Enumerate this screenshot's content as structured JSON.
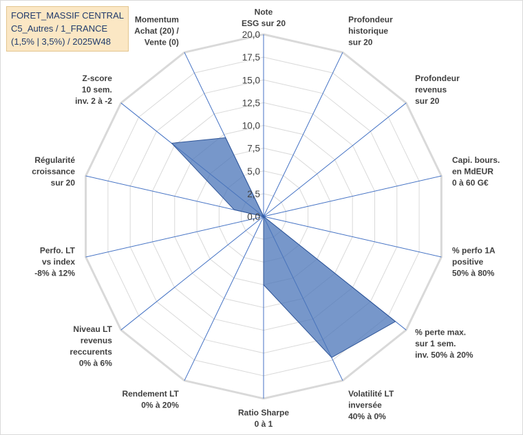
{
  "title_lines": [
    "FORET_MASSIF CENTRAL",
    "C5_Autres / 1_FRANCE",
    "(1,5% | 3,5%) / 2025W48"
  ],
  "colors": {
    "grid": "#d9d9d9",
    "spoke": "#4472c4",
    "fill": "#4a74b8",
    "fill_opacity": 0.75,
    "stroke": "#2f5597",
    "title_bg": "#fbe7c4"
  },
  "chart_data": {
    "type": "radar",
    "title": "",
    "rmin": 0,
    "rmax": 20,
    "tick_step": 2.5,
    "tick_labels": [
      "0,0",
      "2,5",
      "5,0",
      "7,5",
      "10,0",
      "12,5",
      "15,0",
      "17,5",
      "20,0"
    ],
    "grid": true,
    "axes": [
      {
        "label": [
          "Note",
          "ESG sur 20"
        ],
        "value": 0
      },
      {
        "label": [
          "Profondeur",
          "historique",
          "sur 20"
        ],
        "value": 0
      },
      {
        "label": [
          "Profondeur",
          "revenus",
          "sur 20"
        ],
        "value": 0
      },
      {
        "label": [
          "Capi. bours.",
          "en MdEUR",
          "0 à 60 G€"
        ],
        "value": 0
      },
      {
        "label": [
          "% perfo 1A",
          "positive",
          "50% à 80%"
        ],
        "value": 0
      },
      {
        "label": [
          "% perte max.",
          "sur 1 sem.",
          "inv. 50% à 20%"
        ],
        "value": 18.5
      },
      {
        "label": [
          "Volatilité LT",
          "inversée",
          "40% à 0%"
        ],
        "value": 17.2
      },
      {
        "label": [
          "Ratio Sharpe",
          "0 à 1"
        ],
        "value": 7.5
      },
      {
        "label": [
          "Rendement LT",
          "0% à 20%"
        ],
        "value": 0
      },
      {
        "label": [
          "Niveau LT",
          "revenus",
          "reccurents",
          "0% à 6%"
        ],
        "value": 0
      },
      {
        "label": [
          "Perfo. LT",
          "vs index",
          "-8% à 12%"
        ],
        "value": 0
      },
      {
        "label": [
          "Régularité",
          "croissance",
          "sur 20"
        ],
        "value": 3.3
      },
      {
        "label": [
          "Z-score",
          "10 sem.",
          "inv. 2 à -2"
        ],
        "value": 12.9
      },
      {
        "label": [
          "Momentum",
          "Achat (20) /",
          "Vente (0)"
        ],
        "value": 9.6
      }
    ],
    "series": [
      {
        "name": ""
      }
    ]
  }
}
